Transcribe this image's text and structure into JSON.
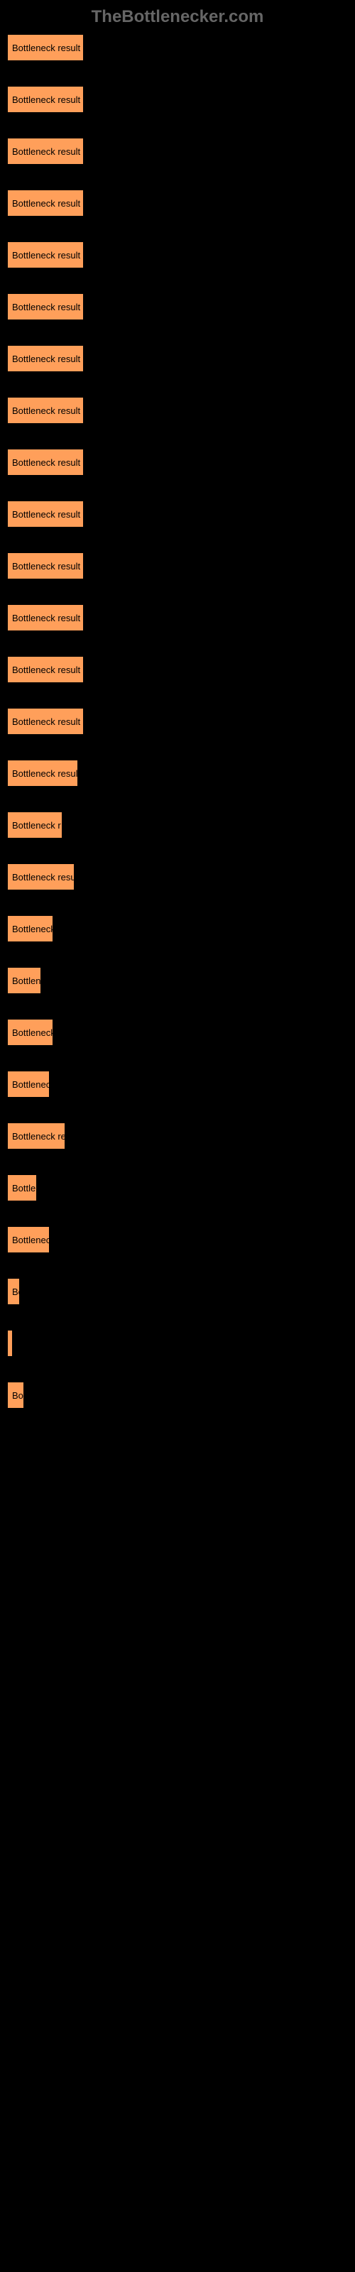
{
  "header": "TheBottlenecker.com",
  "chart": {
    "type": "bar",
    "bar_color": "#ff9f5a",
    "background_color": "#000000",
    "text_color": "#000000",
    "header_color": "#666666",
    "max_width": 480,
    "bars": [
      {
        "label": "Bottleneck result",
        "width": 108
      },
      {
        "label": "Bottleneck result",
        "width": 108
      },
      {
        "label": "Bottleneck result",
        "width": 108
      },
      {
        "label": "Bottleneck result",
        "width": 108
      },
      {
        "label": "Bottleneck result",
        "width": 108
      },
      {
        "label": "Bottleneck result",
        "width": 108
      },
      {
        "label": "Bottleneck result",
        "width": 108
      },
      {
        "label": "Bottleneck result",
        "width": 108
      },
      {
        "label": "Bottleneck result",
        "width": 108
      },
      {
        "label": "Bottleneck result",
        "width": 108
      },
      {
        "label": "Bottleneck result",
        "width": 108
      },
      {
        "label": "Bottleneck result",
        "width": 108
      },
      {
        "label": "Bottleneck result",
        "width": 108
      },
      {
        "label": "Bottleneck result",
        "width": 108
      },
      {
        "label": "Bottleneck result",
        "width": 100
      },
      {
        "label": "Bottleneck r",
        "width": 78
      },
      {
        "label": "Bottleneck resu",
        "width": 95
      },
      {
        "label": "Bottleneck",
        "width": 65
      },
      {
        "label": "Bottlen",
        "width": 48
      },
      {
        "label": "Bottleneck",
        "width": 65
      },
      {
        "label": "Bottlenec",
        "width": 60
      },
      {
        "label": "Bottleneck re",
        "width": 82
      },
      {
        "label": "Bottle",
        "width": 42
      },
      {
        "label": "Bottlenec",
        "width": 60
      },
      {
        "label": "Bo",
        "width": 18
      },
      {
        "label": "",
        "width": 6
      },
      {
        "label": "",
        "width": 0
      },
      {
        "label": "Bot",
        "width": 24
      }
    ]
  }
}
